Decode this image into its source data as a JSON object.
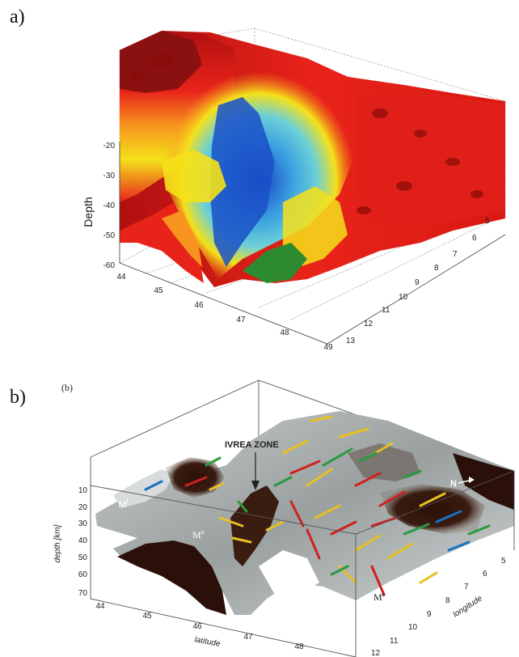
{
  "panels": {
    "a": {
      "letter": "a)"
    },
    "b": {
      "letter": "b)",
      "tag": "(b)"
    }
  },
  "chart_data": [
    {
      "type": "surface",
      "zlabel": "Depth",
      "zticks": [
        "-20",
        "-30",
        "-40",
        "-50",
        "-60"
      ],
      "xticks": [
        "44",
        "45",
        "46",
        "47",
        "48",
        "49"
      ],
      "yticks": [
        "5",
        "6",
        "7",
        "8",
        "9",
        "10",
        "11",
        "12",
        "13"
      ],
      "zlim": [
        -60,
        -20
      ],
      "xlim": [
        44,
        49
      ],
      "ylim": [
        5,
        13
      ],
      "colormap": [
        "#8b0000",
        "#e8231a",
        "#f7931e",
        "#f4e11a",
        "#6cd0e8",
        "#1a5fd0"
      ],
      "grid": true
    },
    {
      "type": "surface",
      "zlabel": "depth [km]",
      "xlabel": "latitude",
      "ylabel": "longitude",
      "zticks": [
        "10",
        "20",
        "30",
        "40",
        "50",
        "60",
        "70"
      ],
      "xticks": [
        "44",
        "45",
        "46",
        "47",
        "48"
      ],
      "yticks": [
        "5",
        "6",
        "7",
        "8",
        "9",
        "10",
        "11",
        "12"
      ],
      "annotations": [
        "IVREA ZONE",
        "N"
      ],
      "moho_labels": [
        {
          "base": "M",
          "sup": "l"
        },
        {
          "base": "M",
          "sup": "a"
        },
        {
          "base": "M",
          "sup": "e"
        }
      ],
      "grid": false
    }
  ]
}
